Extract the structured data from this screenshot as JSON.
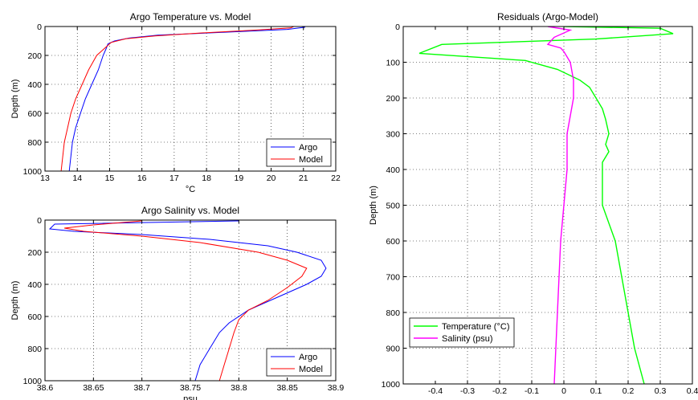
{
  "chart_data": [
    {
      "type": "line",
      "title": "Argo Temperature vs. Model",
      "xlabel": "°C",
      "ylabel": "Depth (m)",
      "xlim": [
        13,
        22
      ],
      "ylim": [
        0,
        1000
      ],
      "y_reversed": true,
      "xticks": [
        13,
        14,
        15,
        16,
        17,
        18,
        19,
        20,
        21,
        22
      ],
      "yticks": [
        0,
        200,
        400,
        600,
        800,
        1000
      ],
      "grid": true,
      "legend_position": "bottom-right",
      "series": [
        {
          "name": "Argo",
          "color": "#0000ff",
          "points": [
            [
              20.95,
              0
            ],
            [
              21.05,
              5
            ],
            [
              20.5,
              20
            ],
            [
              18.5,
              40
            ],
            [
              16.5,
              60
            ],
            [
              15.6,
              80
            ],
            [
              15.15,
              100
            ],
            [
              14.95,
              120
            ],
            [
              14.9,
              150
            ],
            [
              14.8,
              200
            ],
            [
              14.65,
              300
            ],
            [
              14.45,
              400
            ],
            [
              14.25,
              500
            ],
            [
              14.1,
              600
            ],
            [
              13.95,
              700
            ],
            [
              13.85,
              800
            ],
            [
              13.8,
              900
            ],
            [
              13.75,
              1000
            ]
          ]
        },
        {
          "name": "Model",
          "color": "#ff0000",
          "points": [
            [
              20.7,
              0
            ],
            [
              20.6,
              10
            ],
            [
              19.5,
              25
            ],
            [
              17.8,
              45
            ],
            [
              16.4,
              65
            ],
            [
              15.5,
              85
            ],
            [
              15.05,
              110
            ],
            [
              14.85,
              150
            ],
            [
              14.6,
              200
            ],
            [
              14.35,
              300
            ],
            [
              14.15,
              400
            ],
            [
              13.95,
              500
            ],
            [
              13.8,
              600
            ],
            [
              13.7,
              700
            ],
            [
              13.6,
              800
            ],
            [
              13.55,
              900
            ],
            [
              13.5,
              1000
            ]
          ]
        }
      ]
    },
    {
      "type": "line",
      "title": "Argo Salinity vs. Model",
      "xlabel": "psu",
      "ylabel": "Depth (m)",
      "xlim": [
        38.6,
        38.9
      ],
      "ylim": [
        0,
        1000
      ],
      "y_reversed": true,
      "xticks": [
        "38.6",
        "38.65",
        "38.7",
        "38.75",
        "38.8",
        "38.85",
        "38.9"
      ],
      "yticks": [
        0,
        200,
        400,
        600,
        800,
        1000
      ],
      "grid": true,
      "legend_position": "bottom-right",
      "series": [
        {
          "name": "Argo",
          "color": "#0000ff",
          "points": [
            [
              38.8,
              5
            ],
            [
              38.61,
              25
            ],
            [
              38.605,
              55
            ],
            [
              38.63,
              70
            ],
            [
              38.7,
              90
            ],
            [
              38.77,
              120
            ],
            [
              38.83,
              160
            ],
            [
              38.86,
              200
            ],
            [
              38.885,
              250
            ],
            [
              38.89,
              300
            ],
            [
              38.885,
              350
            ],
            [
              38.87,
              400
            ],
            [
              38.84,
              480
            ],
            [
              38.81,
              560
            ],
            [
              38.79,
              640
            ],
            [
              38.78,
              700
            ],
            [
              38.77,
              800
            ],
            [
              38.76,
              900
            ],
            [
              38.755,
              1000
            ]
          ]
        },
        {
          "name": "Model",
          "color": "#ff0000",
          "points": [
            [
              38.7,
              5
            ],
            [
              38.65,
              30
            ],
            [
              38.62,
              50
            ],
            [
              38.64,
              70
            ],
            [
              38.7,
              100
            ],
            [
              38.76,
              140
            ],
            [
              38.82,
              200
            ],
            [
              38.85,
              250
            ],
            [
              38.87,
              300
            ],
            [
              38.865,
              350
            ],
            [
              38.85,
              420
            ],
            [
              38.83,
              500
            ],
            [
              38.81,
              560
            ],
            [
              38.8,
              620
            ],
            [
              38.795,
              700
            ],
            [
              38.79,
              800
            ],
            [
              38.785,
              900
            ],
            [
              38.78,
              1000
            ]
          ]
        }
      ]
    },
    {
      "type": "line",
      "title": "Residuals (Argo-Model)",
      "xlabel": "",
      "ylabel": "Depth (m)",
      "xlim": [
        -0.5,
        0.4
      ],
      "ylim": [
        0,
        1000
      ],
      "y_reversed": true,
      "xticks": [
        "-0.4",
        "-0.3",
        "-0.2",
        "-0.1",
        "0",
        "0.1",
        "0.2",
        "0.3",
        "0.4"
      ],
      "yticks": [
        0,
        100,
        200,
        300,
        400,
        500,
        600,
        700,
        800,
        900,
        1000
      ],
      "grid": true,
      "legend_position": "bottom-left",
      "series": [
        {
          "name": "Temperature (°C)",
          "color": "#00ff00",
          "points": [
            [
              0.0,
              0
            ],
            [
              0.3,
              5
            ],
            [
              0.34,
              20
            ],
            [
              0.1,
              35
            ],
            [
              -0.38,
              50
            ],
            [
              -0.45,
              75
            ],
            [
              -0.12,
              95
            ],
            [
              -0.02,
              120
            ],
            [
              0.05,
              150
            ],
            [
              0.08,
              170
            ],
            [
              0.1,
              200
            ],
            [
              0.12,
              230
            ],
            [
              0.13,
              260
            ],
            [
              0.14,
              300
            ],
            [
              0.13,
              330
            ],
            [
              0.14,
              350
            ],
            [
              0.12,
              380
            ],
            [
              0.12,
              450
            ],
            [
              0.12,
              500
            ],
            [
              0.14,
              550
            ],
            [
              0.16,
              600
            ],
            [
              0.18,
              700
            ],
            [
              0.2,
              800
            ],
            [
              0.22,
              900
            ],
            [
              0.25,
              1000
            ]
          ]
        },
        {
          "name": "Salinity (psu)",
          "color": "#ff00ff",
          "points": [
            [
              -0.05,
              0
            ],
            [
              0.02,
              10
            ],
            [
              -0.03,
              30
            ],
            [
              -0.05,
              50
            ],
            [
              -0.01,
              60
            ],
            [
              0.0,
              70
            ],
            [
              0.02,
              100
            ],
            [
              0.03,
              150
            ],
            [
              0.03,
              200
            ],
            [
              0.02,
              250
            ],
            [
              0.01,
              300
            ],
            [
              0.01,
              400
            ],
            [
              0.0,
              500
            ],
            [
              -0.01,
              600
            ],
            [
              -0.015,
              700
            ],
            [
              -0.02,
              800
            ],
            [
              -0.025,
              900
            ],
            [
              -0.03,
              1000
            ]
          ]
        }
      ]
    }
  ]
}
